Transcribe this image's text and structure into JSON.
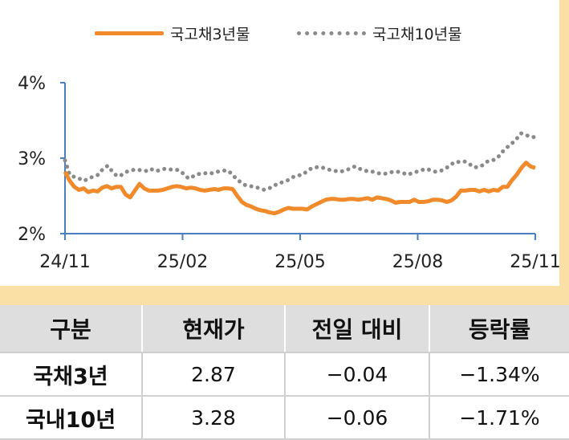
{
  "legend": {
    "series1": "국고채3년물",
    "series2": "국고채10년물"
  },
  "colors": {
    "series1": "#f08a2a",
    "series2": "#8a8a8a",
    "axis": "#4a7fc1",
    "band": "#fbe0a6",
    "header_bg": "#dedede"
  },
  "table": {
    "headers": [
      "구분",
      "현재가",
      "전일 대비",
      "등락률"
    ],
    "rows": [
      {
        "name": "국채3년",
        "price": "2.87",
        "change": "−0.04",
        "rate": "−1.34%"
      },
      {
        "name": "국내10년",
        "price": "3.28",
        "change": "−0.06",
        "rate": "−1.71%"
      }
    ]
  },
  "chart_data": {
    "type": "line",
    "title": "",
    "xlabel": "",
    "ylabel": "",
    "y_ticks": [
      "2%",
      "3%",
      "4%"
    ],
    "ylim": [
      2,
      4
    ],
    "x_ticks": [
      "24/11",
      "25/02",
      "25/05",
      "25/08",
      "25/11"
    ],
    "legend_position": "top",
    "grid": false,
    "series": [
      {
        "name": "국고채3년물",
        "values": [
          2.82,
          2.7,
          2.62,
          2.58,
          2.6,
          2.55,
          2.57,
          2.56,
          2.61,
          2.63,
          2.6,
          2.62,
          2.62,
          2.52,
          2.48,
          2.57,
          2.66,
          2.6,
          2.57,
          2.57,
          2.57,
          2.58,
          2.6,
          2.62,
          2.63,
          2.62,
          2.6,
          2.61,
          2.6,
          2.58,
          2.57,
          2.58,
          2.59,
          2.58,
          2.6,
          2.6,
          2.59,
          2.5,
          2.42,
          2.38,
          2.36,
          2.33,
          2.31,
          2.3,
          2.28,
          2.27,
          2.29,
          2.32,
          2.34,
          2.33,
          2.33,
          2.33,
          2.32,
          2.36,
          2.39,
          2.42,
          2.45,
          2.46,
          2.46,
          2.45,
          2.45,
          2.46,
          2.46,
          2.45,
          2.46,
          2.47,
          2.45,
          2.48,
          2.47,
          2.46,
          2.44,
          2.41,
          2.42,
          2.42,
          2.42,
          2.45,
          2.42,
          2.42,
          2.43,
          2.45,
          2.45,
          2.44,
          2.42,
          2.44,
          2.49,
          2.57,
          2.57,
          2.58,
          2.58,
          2.56,
          2.58,
          2.56,
          2.58,
          2.57,
          2.62,
          2.62,
          2.71,
          2.78,
          2.87,
          2.94,
          2.89,
          2.87
        ]
      },
      {
        "name": "국고채10년물",
        "values": [
          2.97,
          2.78,
          2.75,
          2.73,
          2.7,
          2.73,
          2.76,
          2.78,
          2.86,
          2.9,
          2.82,
          2.76,
          2.78,
          2.82,
          2.84,
          2.85,
          2.84,
          2.83,
          2.86,
          2.83,
          2.84,
          2.86,
          2.85,
          2.85,
          2.84,
          2.79,
          2.73,
          2.76,
          2.79,
          2.79,
          2.81,
          2.8,
          2.82,
          2.83,
          2.84,
          2.8,
          2.73,
          2.68,
          2.64,
          2.63,
          2.62,
          2.6,
          2.58,
          2.6,
          2.64,
          2.66,
          2.69,
          2.71,
          2.75,
          2.77,
          2.78,
          2.83,
          2.87,
          2.88,
          2.88,
          2.86,
          2.84,
          2.83,
          2.82,
          2.84,
          2.86,
          2.89,
          2.86,
          2.84,
          2.82,
          2.82,
          2.8,
          2.79,
          2.8,
          2.82,
          2.82,
          2.81,
          2.78,
          2.8,
          2.82,
          2.84,
          2.86,
          2.84,
          2.82,
          2.83,
          2.86,
          2.9,
          2.95,
          2.95,
          2.96,
          2.93,
          2.88,
          2.88,
          2.91,
          2.96,
          2.97,
          3.0,
          3.08,
          3.14,
          3.19,
          3.25,
          3.33,
          3.31,
          3.28,
          3.28
        ]
      }
    ]
  }
}
